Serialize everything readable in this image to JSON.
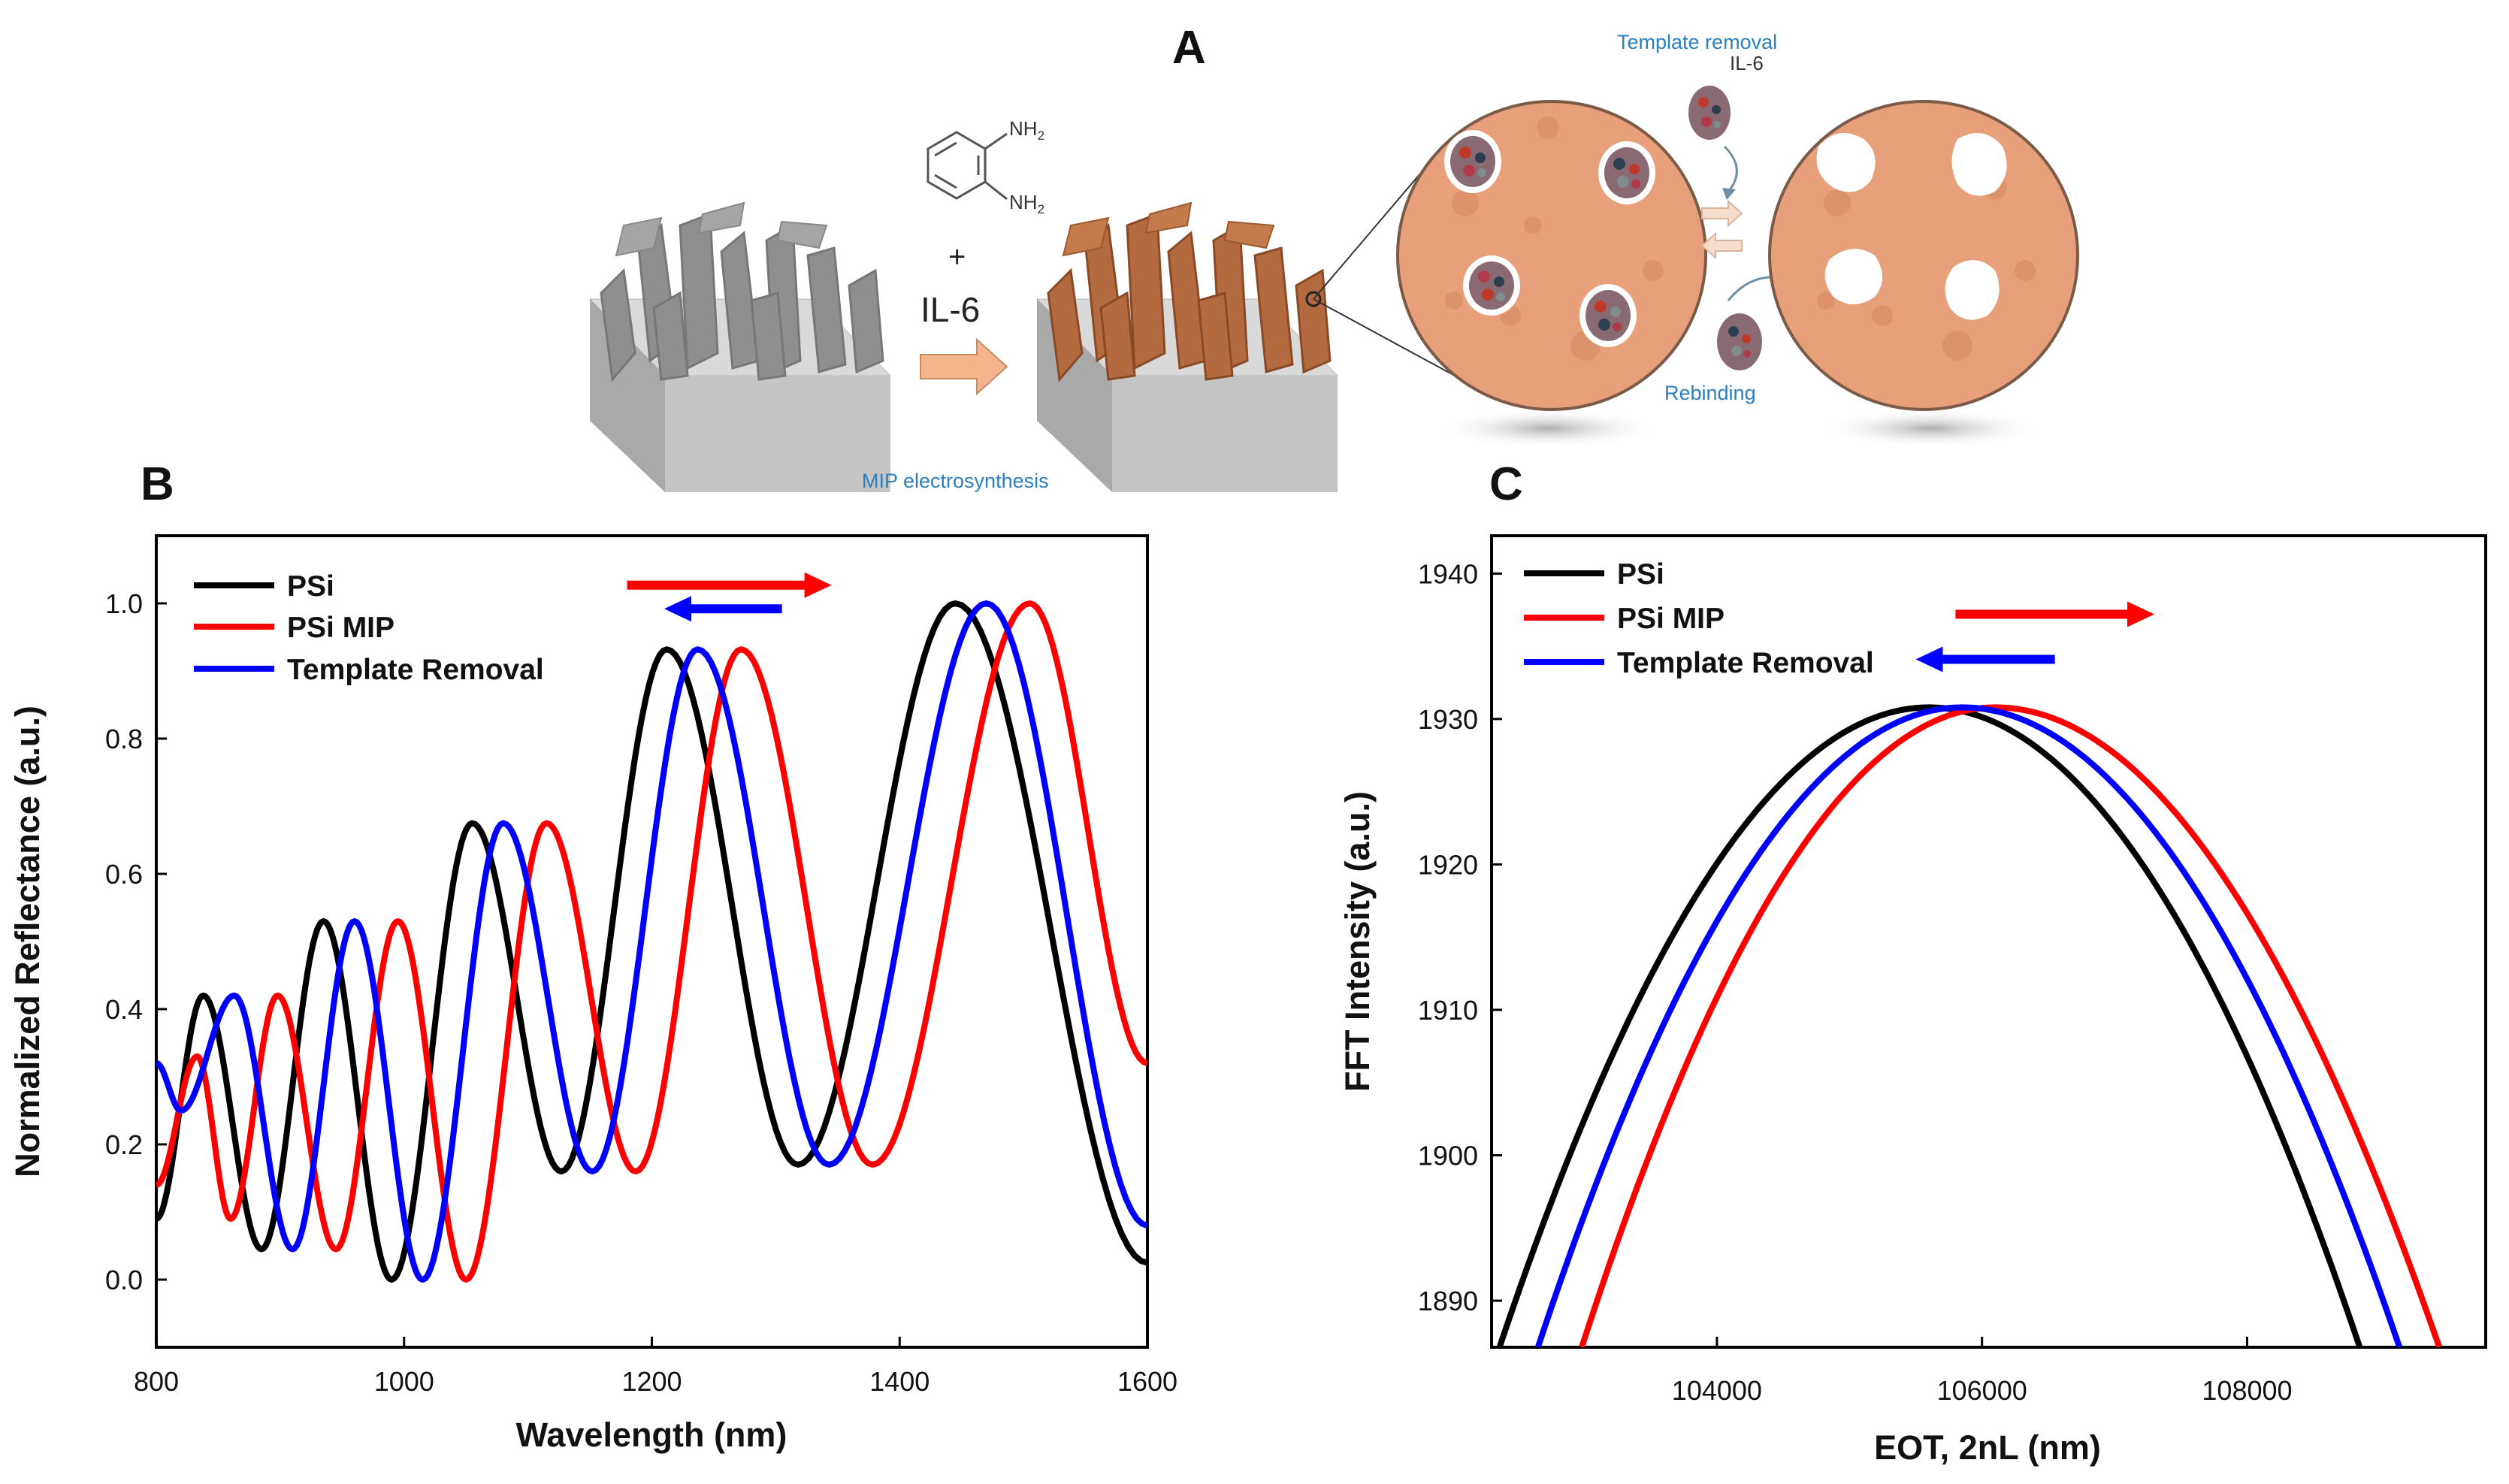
{
  "panels": {
    "a": {
      "letter": "A"
    },
    "b": {
      "letter": "B"
    },
    "c": {
      "letter": "C"
    }
  },
  "schematic": {
    "nh2_top": "NH",
    "nh2_bottom": "NH",
    "nh2_subscript": "2",
    "plus": "+",
    "analyte": "IL-6",
    "step_label": "MIP electrosynthesis",
    "template_removal_label": "Template removal",
    "il6_label": "IL-6",
    "rebinding_label": "Rebinding",
    "colors": {
      "silicon": "#bdbdbd",
      "polymer": "#b36a3e",
      "zoom_fill": "#e7a07a",
      "arrow": "#f5b48c"
    }
  },
  "chart_data": [
    {
      "id": "B",
      "type": "line",
      "title": "",
      "xlabel": "Wavelength (nm)",
      "ylabel": "Normalized Reflectance (a.u.)",
      "xlim": [
        800,
        1600
      ],
      "ylim": [
        -0.1,
        1.1
      ],
      "xticks": [
        800,
        1000,
        1200,
        1400,
        1600
      ],
      "xtick_labels": [
        "800",
        "1000",
        "1200",
        "1400",
        "1600"
      ],
      "yticks": [
        0.0,
        0.2,
        0.4,
        0.6,
        0.8,
        1.0
      ],
      "ytick_labels": [
        "0.0",
        "0.2",
        "0.4",
        "0.6",
        "0.8",
        "1.0"
      ],
      "legend_position": "top-left",
      "annotations": [
        {
          "type": "arrow",
          "direction": "right",
          "color": "#ff0000",
          "x": [
            1180,
            1345
          ],
          "y": 1.027
        },
        {
          "type": "arrow",
          "direction": "left",
          "color": "#0000ff",
          "x": [
            1305,
            1210
          ],
          "y": 0.992
        }
      ],
      "series": [
        {
          "name": "PSi",
          "color": "#000000",
          "shift_nm": 0,
          "peaks": [
            [
              838,
              0.42
            ],
            [
              935,
              0.53
            ],
            [
              1055,
              0.675
            ],
            [
              1212,
              0.932
            ],
            [
              1445,
              1.0
            ]
          ],
          "valleys": [
            [
              800,
              0.09
            ],
            [
              885,
              0.045
            ],
            [
              990,
              0.0
            ],
            [
              1127,
              0.16
            ],
            [
              1318,
              0.17
            ],
            [
              1600,
              0.025
            ]
          ]
        },
        {
          "name": "PSi MIP",
          "color": "#ff0000",
          "shift_nm": 60,
          "peaks": [
            [
              898,
              0.42
            ],
            [
              995,
              0.53
            ],
            [
              1115,
              0.675
            ],
            [
              1272,
              0.932
            ],
            [
              1505,
              1.0
            ]
          ],
          "valleys": [
            [
              800,
              0.14
            ],
            [
              833,
              0.33
            ],
            [
              860,
              0.09
            ],
            [
              945,
              0.045
            ],
            [
              1050,
              0.0
            ],
            [
              1187,
              0.16
            ],
            [
              1378,
              0.17
            ],
            [
              1600,
              0.32
            ]
          ]
        },
        {
          "name": "Template Removal",
          "color": "#0000ff",
          "shift_nm": 25,
          "peaks": [
            [
              863,
              0.42
            ],
            [
              960,
              0.53
            ],
            [
              1080,
              0.675
            ],
            [
              1237,
              0.932
            ],
            [
              1470,
              1.0
            ]
          ],
          "valleys": [
            [
              800,
              0.32
            ],
            [
              820,
              0.25
            ],
            [
              910,
              0.045
            ],
            [
              1015,
              0.0
            ],
            [
              1152,
              0.16
            ],
            [
              1343,
              0.17
            ],
            [
              1600,
              0.08
            ]
          ]
        }
      ]
    },
    {
      "id": "C",
      "type": "line",
      "title": "",
      "xlabel": "EOT, 2nL (nm)",
      "ylabel": "FFT Intensity (a.u.)",
      "xlim": [
        102300,
        109800
      ],
      "ylim": [
        1886.8,
        1942.6
      ],
      "xticks": [
        104000,
        106000,
        108000
      ],
      "xtick_labels": [
        "104000",
        "106000",
        "108000"
      ],
      "yticks": [
        1890,
        1900,
        1910,
        1920,
        1930,
        1940
      ],
      "ytick_labels": [
        "1890",
        "1900",
        "1910",
        "1920",
        "1930",
        "1940"
      ],
      "legend_position": "top-left",
      "annotations": [
        {
          "type": "arrow",
          "direction": "right",
          "color": "#ff0000",
          "x": [
            105800,
            107300
          ],
          "y": 1937.2
        },
        {
          "type": "arrow",
          "direction": "left",
          "color": "#0000ff",
          "x": [
            106550,
            105500
          ],
          "y": 1934.1
        }
      ],
      "series": [
        {
          "name": "PSi",
          "color": "#000000",
          "peak_x": 105600,
          "peak_y": 1930.8,
          "left_x_at_bottom": 102360,
          "right_x_at_bottom": 108850
        },
        {
          "name": "PSi MIP",
          "color": "#ff0000",
          "peak_x": 106100,
          "peak_y": 1930.8,
          "left_x_at_bottom": 102980,
          "right_x_at_bottom": 109450
        },
        {
          "name": "Template Removal",
          "color": "#0000ff",
          "peak_x": 105850,
          "peak_y": 1930.8,
          "left_x_at_bottom": 102650,
          "right_x_at_bottom": 109150
        }
      ]
    }
  ]
}
